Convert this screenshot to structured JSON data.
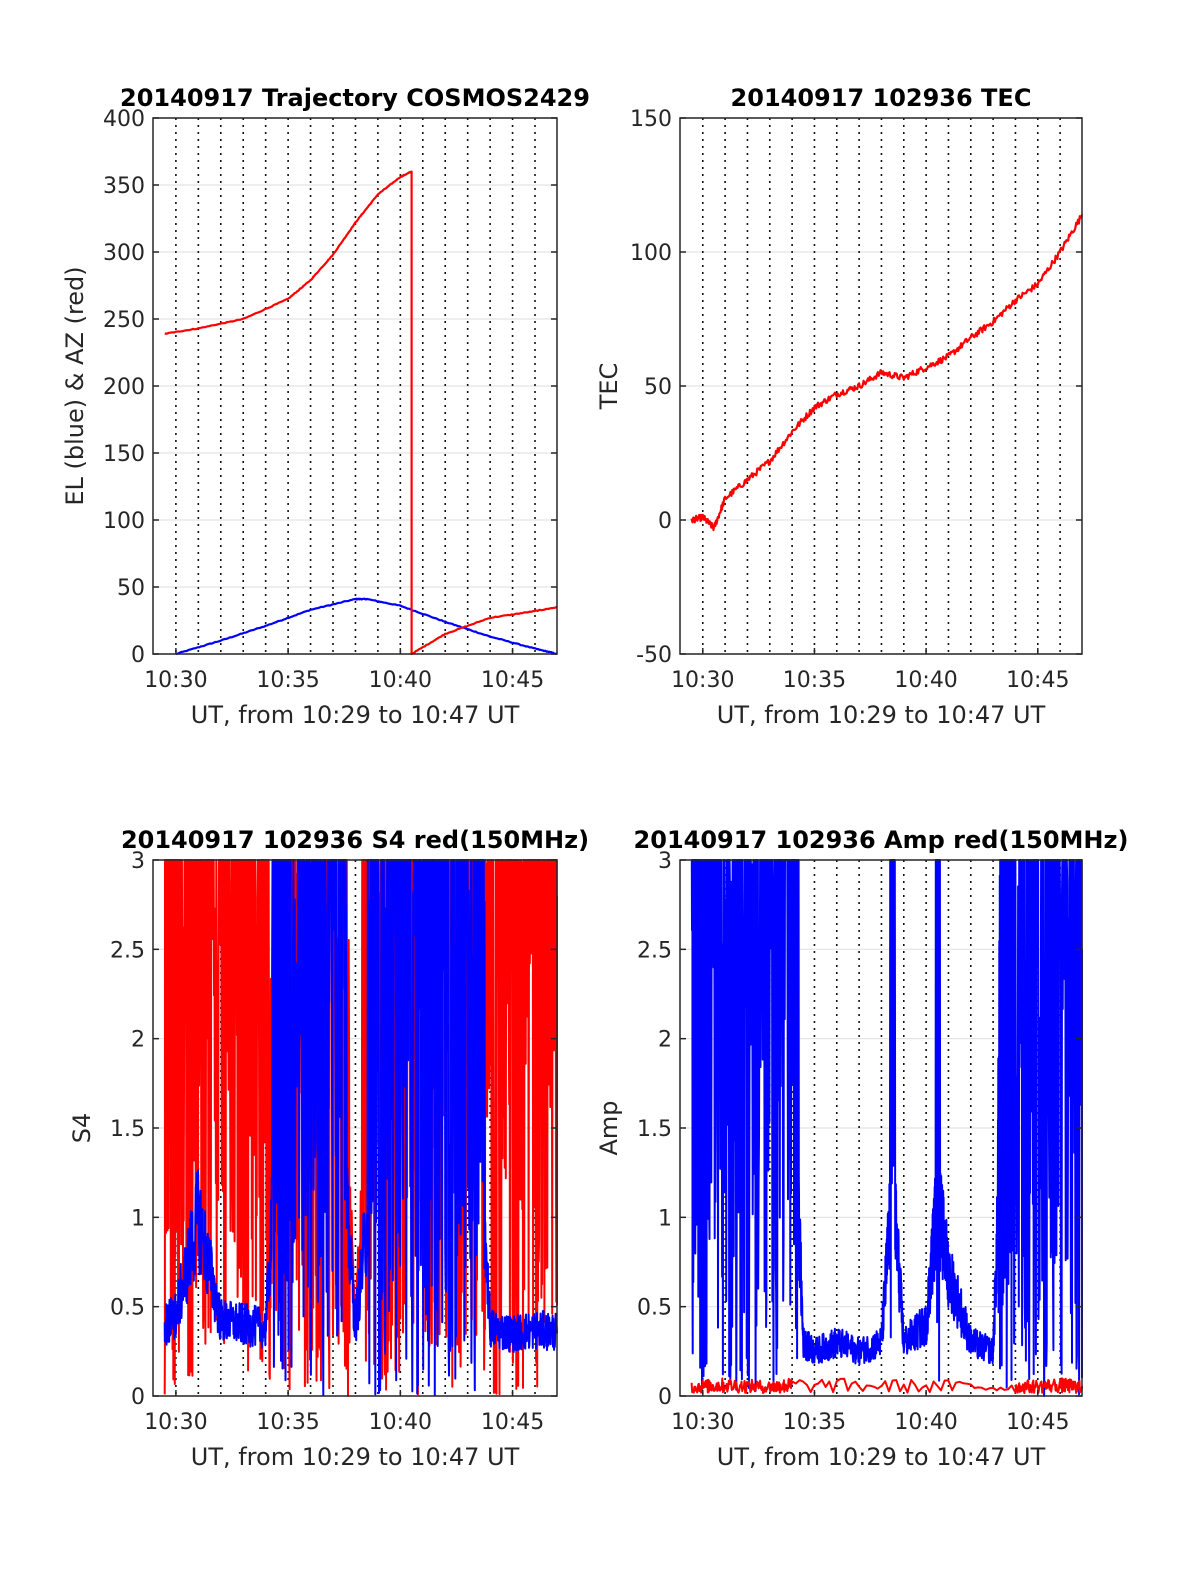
{
  "chart_data": [
    {
      "type": "line",
      "title": "20140917 Trajectory COSMOS2429",
      "xlabel": "UT, from 10:29 to 10:47 UT",
      "ylabel": "EL (blue) & AZ (red)",
      "xlim": [
        10.483,
        10.783
      ],
      "ylim": [
        0,
        400
      ],
      "x_ticks": [
        "10:30",
        "10:35",
        "10:40",
        "10:45"
      ],
      "y_ticks": [
        0,
        50,
        100,
        150,
        200,
        250,
        300,
        350,
        400
      ],
      "grid": "horizontal solid, vertical dotted each minute",
      "series": [
        {
          "color": "#0000ff",
          "x": [
            "10:30",
            "10:32",
            "10:34",
            "10:36",
            "10:38",
            "10:38.5",
            "10:40",
            "10:42",
            "10:44",
            "10:46",
            "10:47"
          ],
          "y": [
            0,
            10,
            21,
            33,
            41,
            41,
            36,
            24,
            13,
            4,
            0
          ]
        },
        {
          "color": "#ff0000",
          "x": [
            "10:29.5",
            "10:31",
            "10:33",
            "10:35",
            "10:36",
            "10:37",
            "10:38",
            "10:39",
            "10:40",
            "10:40.5",
            "10:40.5",
            "10:42",
            "10:44",
            "10:46",
            "10:47"
          ],
          "y": [
            239,
            243,
            250,
            265,
            279,
            298,
            322,
            343,
            356,
            360,
            0,
            15,
            27,
            32,
            35
          ]
        }
      ]
    },
    {
      "type": "line",
      "title": "20140917 102936 TEC",
      "xlabel": "UT, from 10:29 to 10:47 UT",
      "ylabel": "TEC",
      "xlim": [
        10.483,
        10.783
      ],
      "ylim": [
        -50,
        150
      ],
      "x_ticks": [
        "10:30",
        "10:35",
        "10:40",
        "10:45"
      ],
      "y_ticks": [
        -50,
        0,
        50,
        100,
        150
      ],
      "series": [
        {
          "color": "#ff0000",
          "x": [
            "10:29.5",
            "10:30",
            "10:30.5",
            "10:31",
            "10:32",
            "10:33",
            "10:34",
            "10:35",
            "10:36",
            "10:37",
            "10:38",
            "10:39",
            "10:40",
            "10:41",
            "10:42",
            "10:43",
            "10:44",
            "10:45",
            "10:46",
            "10:47"
          ],
          "y": [
            0,
            1,
            -3,
            8,
            15,
            22,
            33,
            42,
            47,
            50,
            55,
            53,
            57,
            61,
            68,
            74,
            82,
            88,
            100,
            114
          ]
        }
      ]
    },
    {
      "type": "line",
      "title": "20140917 102936 S4 red(150MHz)",
      "xlabel": "UT, from 10:29 to 10:47 UT",
      "ylabel": "S4",
      "xlim": [
        10.483,
        10.783
      ],
      "ylim": [
        0,
        3
      ],
      "x_ticks": [
        "10:30",
        "10:35",
        "10:40",
        "10:45"
      ],
      "y_ticks": [
        0,
        0.5,
        1,
        1.5,
        2,
        2.5,
        3
      ],
      "series": [
        {
          "color": "#ff0000",
          "x": [
            "10:29.5",
            "10:30",
            "10:31",
            "10:32",
            "10:33",
            "10:34",
            "10:35",
            "10:36",
            "10:37",
            "10:38",
            "10:39",
            "10:40",
            "10:41",
            "10:42",
            "10:43",
            "10:44",
            "10:45",
            "10:46",
            "10:47"
          ],
          "y": [
            2.6,
            3,
            2.3,
            3,
            2.9,
            2.5,
            3,
            1.8,
            2.8,
            0.4,
            2.5,
            3,
            1.2,
            3,
            2.4,
            3,
            1.5,
            3,
            2.8
          ]
        },
        {
          "color": "#0000ff",
          "x": [
            "10:29.5",
            "10:30",
            "10:31",
            "10:32",
            "10:33",
            "10:34",
            "10:35",
            "10:36",
            "10:37",
            "10:38",
            "10:39",
            "10:40",
            "10:41",
            "10:42",
            "10:43",
            "10:44",
            "10:45",
            "10:46",
            "10:47"
          ],
          "y": [
            0.4,
            0.45,
            1.0,
            0.42,
            0.4,
            0.38,
            2.5,
            2.8,
            2.0,
            0.4,
            1.5,
            2.6,
            2.8,
            1.2,
            2.9,
            0.38,
            0.35,
            0.37,
            0.36
          ]
        }
      ]
    },
    {
      "type": "line",
      "title": "20140917 102936 Amp red(150MHz)",
      "xlabel": "UT, from 10:29 to 10:47 UT",
      "ylabel": "Amp",
      "xlim": [
        10.483,
        10.783
      ],
      "ylim": [
        0,
        3
      ],
      "x_ticks": [
        "10:30",
        "10:35",
        "10:40",
        "10:45"
      ],
      "y_ticks": [
        0,
        0.5,
        1,
        1.5,
        2,
        2.5,
        3
      ],
      "series": [
        {
          "color": "#0000ff",
          "x": [
            "10:29.5",
            "10:30",
            "10:31",
            "10:32",
            "10:33",
            "10:34",
            "10:34.5",
            "10:35",
            "10:36",
            "10:37",
            "10:38",
            "10:38.5",
            "10:39",
            "10:40",
            "10:40.5",
            "10:41",
            "10:42",
            "10:43",
            "10:43.5",
            "10:44",
            "10:45",
            "10:46",
            "10:47"
          ],
          "y": [
            2.1,
            2.5,
            2.2,
            2.5,
            2.3,
            2.0,
            0.3,
            0.25,
            0.3,
            0.25,
            0.3,
            1.2,
            0.3,
            0.4,
            1.1,
            0.7,
            0.3,
            0.25,
            2.0,
            2.5,
            2.4,
            2.8,
            2.5
          ]
        },
        {
          "color": "#ff0000",
          "x": [
            "10:29.5",
            "10:31",
            "10:33",
            "10:34",
            "10:44",
            "10:46",
            "10:47"
          ],
          "y": [
            0.05,
            0.06,
            0.05,
            0.06,
            0.05,
            0.06,
            0.05
          ]
        }
      ]
    }
  ]
}
